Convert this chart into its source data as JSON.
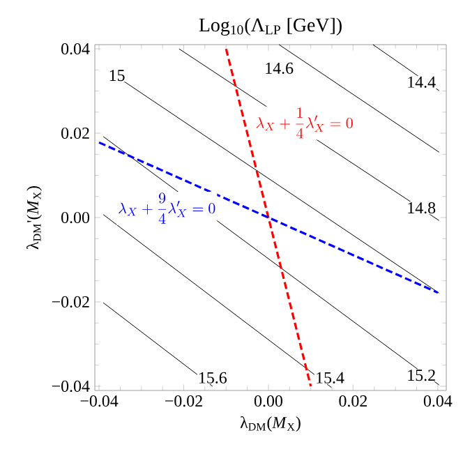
{
  "chart_data": {
    "type": "line",
    "title": "Log$_{10}$(Λ$_{LP}$ [GeV])",
    "xlabel": "λ$_{DM}$(*M*$_{X}$)",
    "ylabel": "λ$_{DM}$'(*M*$_{X}$)",
    "xlim": [
      -0.041,
      0.042
    ],
    "ylim": [
      -0.041,
      0.041
    ],
    "xticks": [
      {
        "value": -0.04,
        "label": "−0.04"
      },
      {
        "value": -0.02,
        "label": "−0.02"
      },
      {
        "value": 0,
        "label": "0.00"
      },
      {
        "value": 0.02,
        "label": "0.02"
      },
      {
        "value": 0.04,
        "label": "0.04"
      }
    ],
    "yticks": [
      {
        "value": -0.04,
        "label": "−0.04"
      },
      {
        "value": -0.02,
        "label": "−0.02"
      },
      {
        "value": 0,
        "label": "0.00"
      },
      {
        "value": 0.02,
        "label": "0.02"
      },
      {
        "value": 0.04,
        "label": "0.04"
      }
    ],
    "grid": false,
    "legend": false,
    "line_style": "solid",
    "series": [
      {
        "color": "#000000",
        "x": [
          0.0247,
          0.0403
        ],
        "values": [
          0.041,
          0.0301
        ]
      },
      {
        "color": "#000000",
        "x": [
          0.0025,
          0.0403
        ],
        "values": [
          0.041,
          0.0155
        ]
      },
      {
        "color": "#000000",
        "x": [
          -0.0211,
          0.0403
        ],
        "values": [
          0.04,
          -0.0007
        ]
      },
      {
        "color": "#000000",
        "x": [
          -0.0377,
          0.0403
        ],
        "values": [
          0.0347,
          -0.0179
        ]
      },
      {
        "color": "#000000",
        "x": [
          -0.039,
          0.0403
        ],
        "values": [
          0.0192,
          -0.0397
        ]
      },
      {
        "color": "#000000",
        "x": [
          -0.039,
          0.0149
        ],
        "values": [
          0.0007,
          -0.0403
        ]
      },
      {
        "color": "#000000",
        "x": [
          -0.039,
          -0.0132
        ],
        "values": [
          -0.0202,
          -0.04
        ]
      },
      {
        "name": "\\lambda_X+\\frac{1}{4}\\lambda_X'=0",
        "color": "#ff0000",
        "line_style": "dashed",
        "x": [
          -0.01,
          0.01
        ],
        "values": [
          0.04,
          -0.04
        ]
      },
      {
        "name": "\\lambda_X+\\frac{9}{4}\\lambda_X'=0",
        "color": "#0000ff",
        "line_style": "dashed",
        "x": [
          -0.04,
          0.04
        ],
        "values": [
          0.0178,
          -0.0178
        ]
      }
    ],
    "annotations": [
      {
        "text": "14.4",
        "x": 0.0361,
        "y": 0.0321
      },
      {
        "text": "14.6",
        "x": 0.0025,
        "y": 0.0354
      },
      {
        "text": "14.8",
        "x": 0.0361,
        "y": 0.0023
      },
      {
        "text": "15",
        "x": -0.0358,
        "y": 0.0337
      },
      {
        "text": "15.2",
        "x": 0.0361,
        "y": -0.0374
      },
      {
        "text": "15.4",
        "x": 0.0145,
        "y": -0.038
      },
      {
        "text": "15.6",
        "x": -0.0132,
        "y": -0.038
      }
    ]
  }
}
